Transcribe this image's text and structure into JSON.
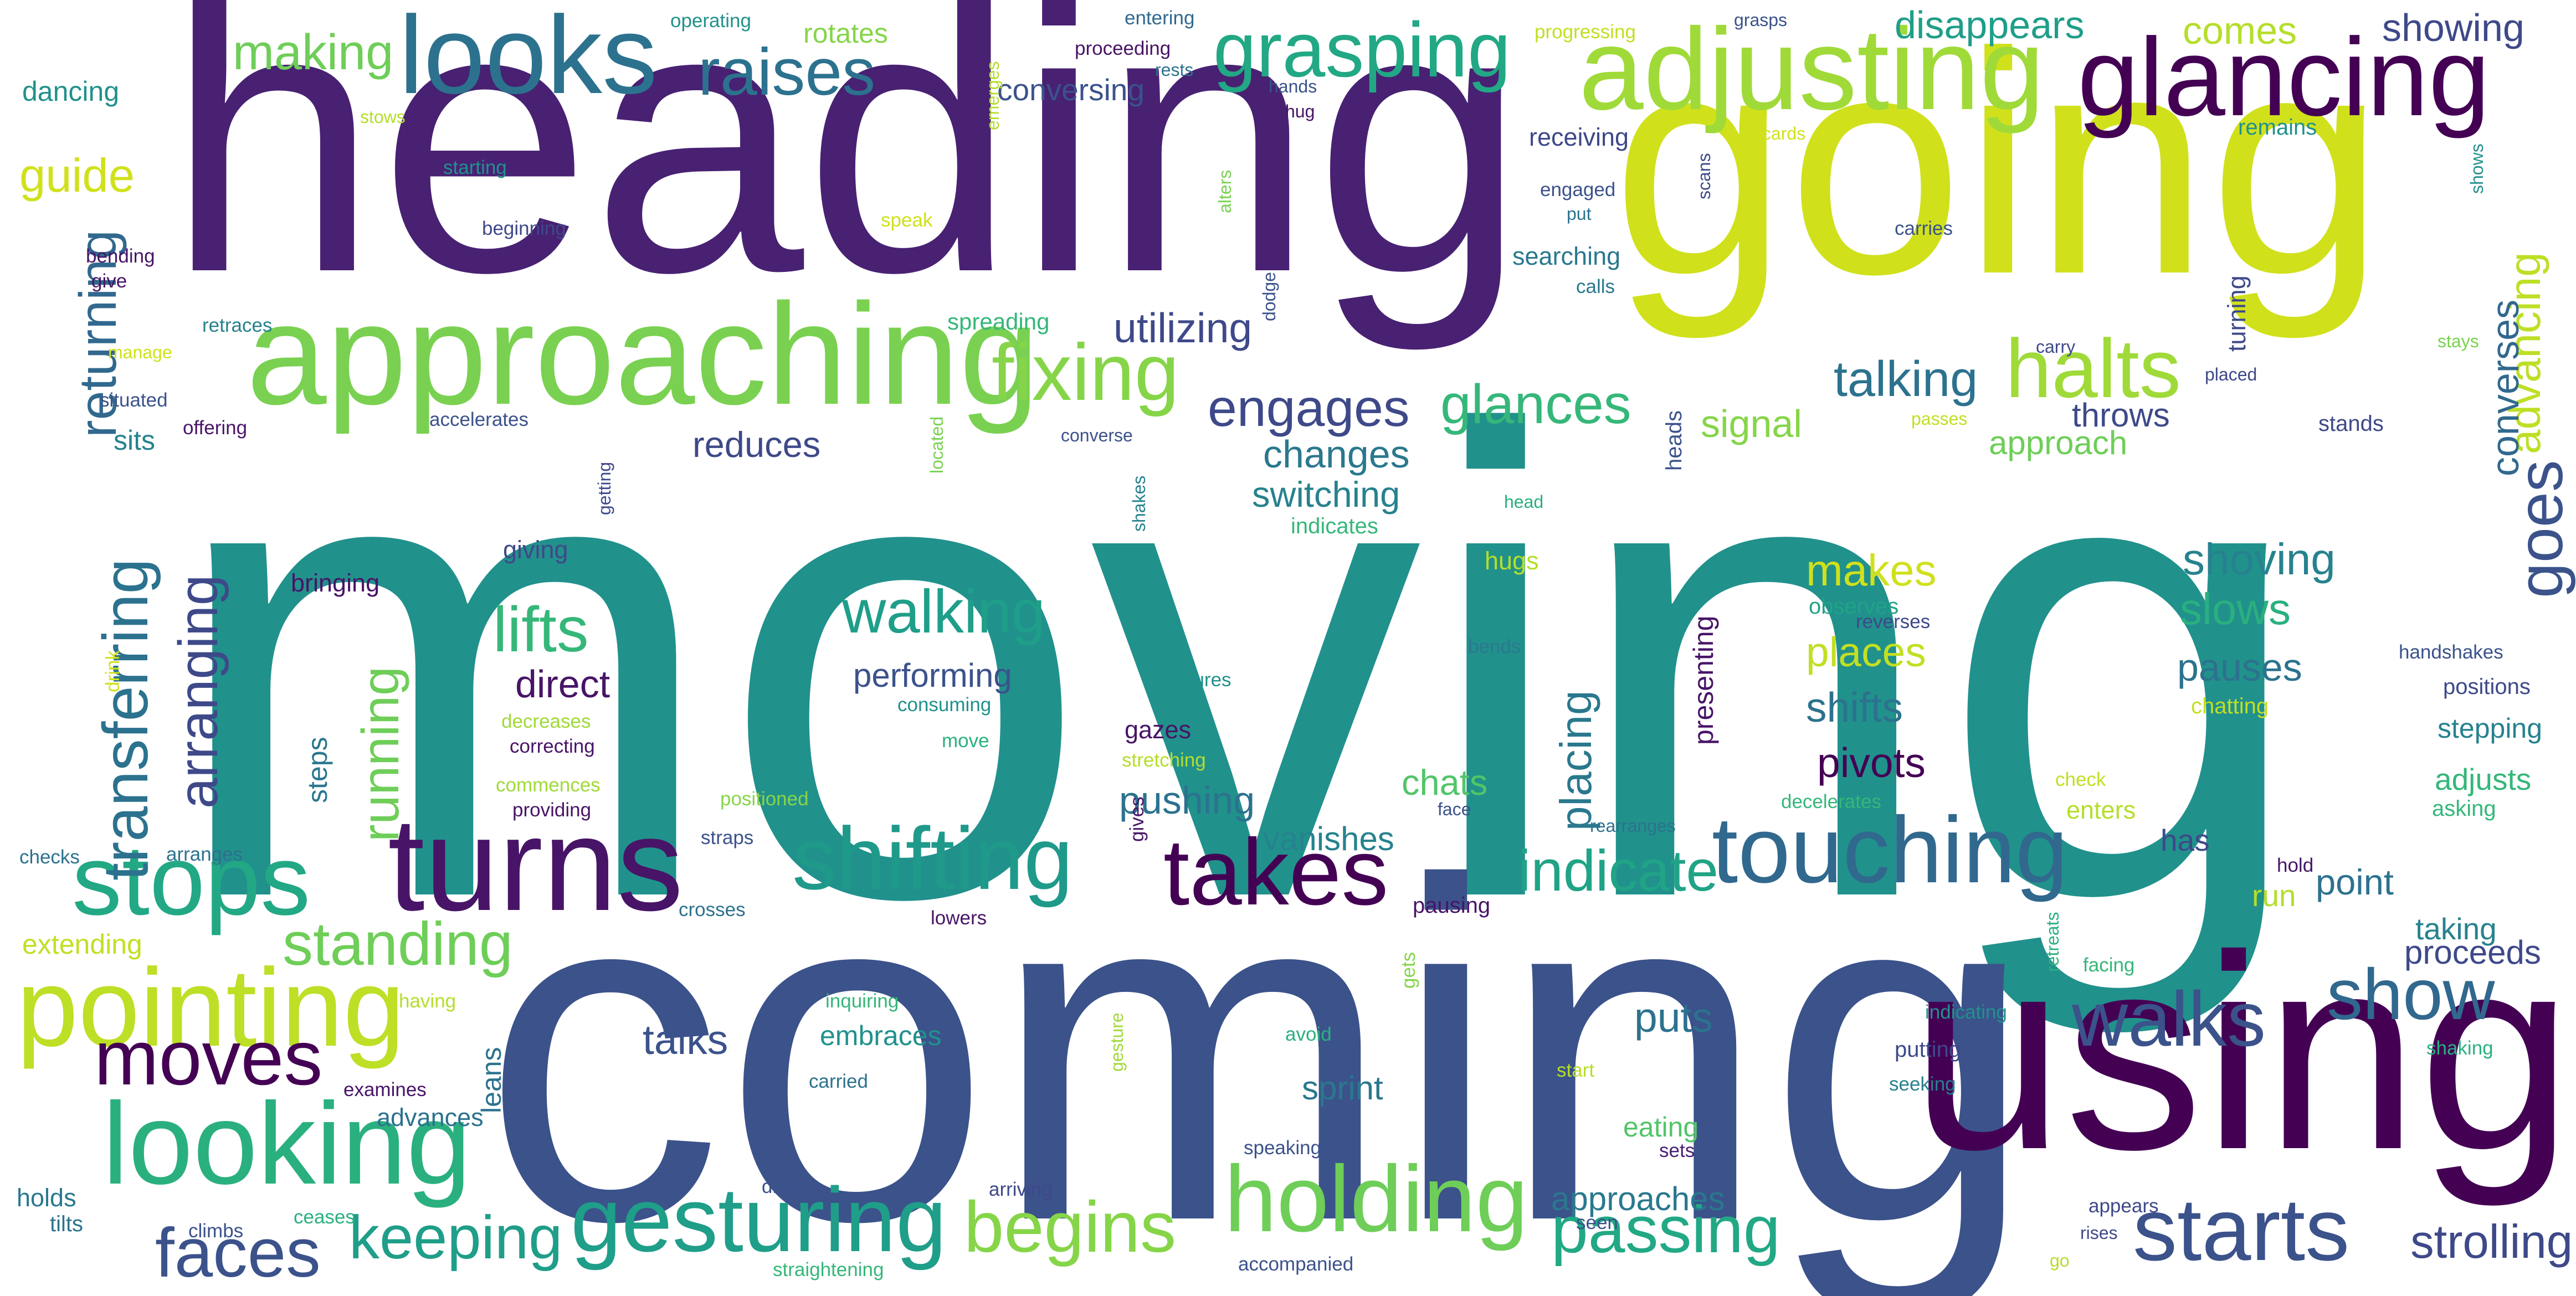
{
  "words": [
    {
      "text": "moving",
      "color": "#21918c"
    },
    {
      "text": "coming",
      "color": "#3b528b"
    },
    {
      "text": "heading",
      "color": "#482173"
    },
    {
      "text": "going",
      "color": "#d0e11c"
    },
    {
      "text": "using",
      "color": "#440154"
    },
    {
      "text": "approaching",
      "color": "#7ad151"
    },
    {
      "text": "adjusting",
      "color": "#a0da39"
    },
    {
      "text": "glancing",
      "color": "#440154"
    },
    {
      "text": "looks",
      "color": "#2c728e"
    },
    {
      "text": "turns",
      "color": "#481467"
    },
    {
      "text": "touching",
      "color": "#31688e"
    },
    {
      "text": "takes",
      "color": "#440154"
    },
    {
      "text": "shifting",
      "color": "#1f9a8a"
    },
    {
      "text": "stops",
      "color": "#22a884"
    },
    {
      "text": "pointing",
      "color": "#bddf26"
    },
    {
      "text": "looking",
      "color": "#2ab07f"
    },
    {
      "text": "gesturing",
      "color": "#1f9e89"
    },
    {
      "text": "holding",
      "color": "#6ece58"
    },
    {
      "text": "halts",
      "color": "#a0da39"
    },
    {
      "text": "grasping",
      "color": "#22a884"
    },
    {
      "text": "raises",
      "color": "#2c728e"
    },
    {
      "text": "fixing",
      "color": "#86d549"
    },
    {
      "text": "moves",
      "color": "#440154"
    },
    {
      "text": "faces",
      "color": "#3b528b"
    },
    {
      "text": "starts",
      "color": "#3b528b"
    },
    {
      "text": "walks",
      "color": "#3b528b"
    },
    {
      "text": "show",
      "color": "#31688e"
    },
    {
      "text": "begins",
      "color": "#86d549"
    },
    {
      "text": "passing",
      "color": "#22a884"
    },
    {
      "text": "standing",
      "color": "#6ece58"
    },
    {
      "text": "keeping",
      "color": "#1f9e89"
    },
    {
      "text": "walking",
      "color": "#1f9e89"
    },
    {
      "text": "glances",
      "color": "#35b779"
    },
    {
      "text": "engages",
      "color": "#3e4989"
    },
    {
      "text": "talking",
      "color": "#2c728e"
    },
    {
      "text": "indicate",
      "color": "#20a386"
    },
    {
      "text": "strolling",
      "color": "#3e4989"
    },
    {
      "text": "transferring",
      "color": "#2c728e"
    },
    {
      "text": "arranging",
      "color": "#3e4989"
    },
    {
      "text": "returning",
      "color": "#31688e"
    },
    {
      "text": "running",
      "color": "#6ece58"
    },
    {
      "text": "lifts",
      "color": "#35b779"
    },
    {
      "text": "goes",
      "color": "#3b528b"
    },
    {
      "text": "advancing",
      "color": "#bddf26"
    },
    {
      "text": "placing",
      "color": "#2a788e"
    },
    {
      "text": "making",
      "color": "#6ece58"
    },
    {
      "text": "guide",
      "color": "#d0e11c"
    },
    {
      "text": "disappears",
      "color": "#1f9e89"
    },
    {
      "text": "comes",
      "color": "#b5de2b"
    },
    {
      "text": "showing",
      "color": "#3e4989"
    },
    {
      "text": "utilizing",
      "color": "#3e4989"
    },
    {
      "text": "changes",
      "color": "#2a788e"
    },
    {
      "text": "switching",
      "color": "#26828e"
    },
    {
      "text": "reduces",
      "color": "#3e4989"
    },
    {
      "text": "signal",
      "color": "#86d549"
    },
    {
      "text": "approach",
      "color": "#6ece58"
    },
    {
      "text": "throws",
      "color": "#3e4989"
    },
    {
      "text": "converses",
      "color": "#31688e"
    },
    {
      "text": "shoving",
      "color": "#26828e"
    },
    {
      "text": "slows",
      "color": "#2ab07f"
    },
    {
      "text": "pauses",
      "color": "#2c728e"
    },
    {
      "text": "makes",
      "color": "#d0e11c"
    },
    {
      "text": "places",
      "color": "#c2df23"
    },
    {
      "text": "shifts",
      "color": "#2c728e"
    },
    {
      "text": "pivots",
      "color": "#440154"
    },
    {
      "text": "performing",
      "color": "#3b528b"
    },
    {
      "text": "direct",
      "color": "#481467"
    },
    {
      "text": "pushing",
      "color": "#2c728e"
    },
    {
      "text": "vanishes",
      "color": "#26828e"
    },
    {
      "text": "chats",
      "color": "#52c569"
    },
    {
      "text": "talks",
      "color": "#3b528b"
    },
    {
      "text": "puts",
      "color": "#2c728e"
    },
    {
      "text": "sprint",
      "color": "#2a788e"
    },
    {
      "text": "approaches",
      "color": "#2a788e"
    },
    {
      "text": "embraces",
      "color": "#21918c"
    },
    {
      "text": "advances",
      "color": "#2c728e"
    },
    {
      "text": "leans",
      "color": "#2c728e"
    },
    {
      "text": "eating",
      "color": "#52c569"
    },
    {
      "text": "point",
      "color": "#2c728e"
    },
    {
      "text": "proceeds",
      "color": "#3e4989"
    },
    {
      "text": "taking",
      "color": "#26828e"
    },
    {
      "text": "adjusts",
      "color": "#35b779"
    },
    {
      "text": "stepping",
      "color": "#26828e"
    },
    {
      "text": "has",
      "color": "#3e4989"
    },
    {
      "text": "run",
      "color": "#b5de2b"
    },
    {
      "text": "enters",
      "color": "#b5de2b"
    },
    {
      "text": "steps",
      "color": "#2a788e"
    },
    {
      "text": "sits",
      "color": "#26828e"
    },
    {
      "text": "dancing",
      "color": "#21918c"
    },
    {
      "text": "conversing",
      "color": "#3b528b"
    },
    {
      "text": "rotates",
      "color": "#86d549"
    },
    {
      "text": "stands",
      "color": "#3e4989"
    },
    {
      "text": "turning",
      "color": "#3e4989"
    },
    {
      "text": "presenting",
      "color": "#481467"
    },
    {
      "text": "hugs",
      "color": "#b5de2b"
    },
    {
      "text": "bringing",
      "color": "#481467"
    },
    {
      "text": "giving",
      "color": "#3e4989"
    },
    {
      "text": "searching",
      "color": "#2a788e"
    },
    {
      "text": "receiving",
      "color": "#3e4989"
    },
    {
      "text": "observes",
      "color": "#20a386"
    },
    {
      "text": "positions",
      "color": "#3e4989"
    },
    {
      "text": "asking",
      "color": "#35b779"
    },
    {
      "text": "gazes",
      "color": "#481467"
    },
    {
      "text": "indicates",
      "color": "#35b779"
    },
    {
      "text": "handshakes",
      "color": "#3b528b"
    },
    {
      "text": "extending",
      "color": "#c2df23"
    },
    {
      "text": "holds",
      "color": "#2a788e"
    },
    {
      "text": "tilts",
      "color": "#2c728e"
    },
    {
      "text": "putting",
      "color": "#3e4989"
    },
    {
      "text": "seeking",
      "color": "#26828e"
    },
    {
      "text": "pausing",
      "color": "#481467"
    },
    {
      "text": "hold",
      "color": "#481467"
    },
    {
      "text": "remains",
      "color": "#21918c"
    },
    {
      "text": "operating",
      "color": "#21918c"
    },
    {
      "text": "entering",
      "color": "#31688e"
    },
    {
      "text": "progressing",
      "color": "#c2df23"
    },
    {
      "text": "grasps",
      "color": "#3b528b"
    },
    {
      "text": "proceeding",
      "color": "#481467"
    },
    {
      "text": "rests",
      "color": "#2c728e"
    },
    {
      "text": "hands",
      "color": "#3b528b"
    },
    {
      "text": "hug",
      "color": "#481467"
    },
    {
      "text": "stows",
      "color": "#b5de2b"
    },
    {
      "text": "discards",
      "color": "#d0e11c"
    },
    {
      "text": "starting",
      "color": "#21918c"
    },
    {
      "text": "beginning",
      "color": "#3e4989"
    },
    {
      "text": "emerges",
      "color": "#b5de2b"
    },
    {
      "text": "speak",
      "color": "#d0e11c"
    },
    {
      "text": "alters",
      "color": "#7ad151"
    },
    {
      "text": "engaged",
      "color": "#3b528b"
    },
    {
      "text": "put",
      "color": "#2c728e"
    },
    {
      "text": "scans",
      "color": "#3e4989"
    },
    {
      "text": "carries",
      "color": "#3b528b"
    },
    {
      "text": "shows",
      "color": "#21918c"
    },
    {
      "text": "bending",
      "color": "#481467"
    },
    {
      "text": "give",
      "color": "#481467"
    },
    {
      "text": "retraces",
      "color": "#26828e"
    },
    {
      "text": "spreading",
      "color": "#35b779"
    },
    {
      "text": "calls",
      "color": "#2a788e"
    },
    {
      "text": "dodge",
      "color": "#3b528b"
    },
    {
      "text": "manage",
      "color": "#d0e11c"
    },
    {
      "text": "carry",
      "color": "#3e4989"
    },
    {
      "text": "placed",
      "color": "#3e4989"
    },
    {
      "text": "stays",
      "color": "#7ad151"
    },
    {
      "text": "situated",
      "color": "#3b528b"
    },
    {
      "text": "offering",
      "color": "#481467"
    },
    {
      "text": "accelerates",
      "color": "#3b528b"
    },
    {
      "text": "converse",
      "color": "#3b528b"
    },
    {
      "text": "passes",
      "color": "#c2df23"
    },
    {
      "text": "located",
      "color": "#7ad151"
    },
    {
      "text": "getting",
      "color": "#3e4989"
    },
    {
      "text": "shakes",
      "color": "#26828e"
    },
    {
      "text": "head",
      "color": "#2ab07f"
    },
    {
      "text": "heads",
      "color": "#3b528b"
    },
    {
      "text": "reverses",
      "color": "#3e4989"
    },
    {
      "text": "bends",
      "color": "#2a788e"
    },
    {
      "text": "chatting",
      "color": "#c2df23"
    },
    {
      "text": "secures",
      "color": "#21918c"
    },
    {
      "text": "consuming",
      "color": "#21918c"
    },
    {
      "text": "move",
      "color": "#2ab07f"
    },
    {
      "text": "drink",
      "color": "#d0e11c"
    },
    {
      "text": "decreases",
      "color": "#a0da39"
    },
    {
      "text": "correcting",
      "color": "#481467"
    },
    {
      "text": "commences",
      "color": "#a0da39"
    },
    {
      "text": "providing",
      "color": "#481467"
    },
    {
      "text": "positioned",
      "color": "#86d549"
    },
    {
      "text": "stretching",
      "color": "#b5de2b"
    },
    {
      "text": "face",
      "color": "#3b528b"
    },
    {
      "text": "rearranges",
      "color": "#2c728e"
    },
    {
      "text": "decelerates",
      "color": "#35b779"
    },
    {
      "text": "check",
      "color": "#c2df23"
    },
    {
      "text": "checks",
      "color": "#2c728e"
    },
    {
      "text": "arranges",
      "color": "#2c728e"
    },
    {
      "text": "straps",
      "color": "#3b528b"
    },
    {
      "text": "crosses",
      "color": "#2c728e"
    },
    {
      "text": "gives",
      "color": "#481467"
    },
    {
      "text": "lowers",
      "color": "#481467"
    },
    {
      "text": "having",
      "color": "#b5de2b"
    },
    {
      "text": "inquiring",
      "color": "#35b779"
    },
    {
      "text": "gets",
      "color": "#86d549"
    },
    {
      "text": "indicating",
      "color": "#21918c"
    },
    {
      "text": "retreats",
      "color": "#2ab07f"
    },
    {
      "text": "facing",
      "color": "#35b779"
    },
    {
      "text": "shaking",
      "color": "#2ab07f"
    },
    {
      "text": "examines",
      "color": "#481467"
    },
    {
      "text": "carried",
      "color": "#2c728e"
    },
    {
      "text": "avoid",
      "color": "#2ab07f"
    },
    {
      "text": "gesture",
      "color": "#a0da39"
    },
    {
      "text": "start",
      "color": "#b5de2b"
    },
    {
      "text": "speaking",
      "color": "#3b528b"
    },
    {
      "text": "sets",
      "color": "#482173"
    },
    {
      "text": "drinks",
      "color": "#3b528b"
    },
    {
      "text": "arriving",
      "color": "#3e4989"
    },
    {
      "text": "seen",
      "color": "#3b528b"
    },
    {
      "text": "appears",
      "color": "#3e4989"
    },
    {
      "text": "rises",
      "color": "#3e4989"
    },
    {
      "text": "climbs",
      "color": "#3b528b"
    },
    {
      "text": "ceases",
      "color": "#2ab07f"
    },
    {
      "text": "straightening",
      "color": "#35b779"
    },
    {
      "text": "accompanied",
      "color": "#3b528b"
    },
    {
      "text": "go",
      "color": "#b5de2b"
    }
  ]
}
